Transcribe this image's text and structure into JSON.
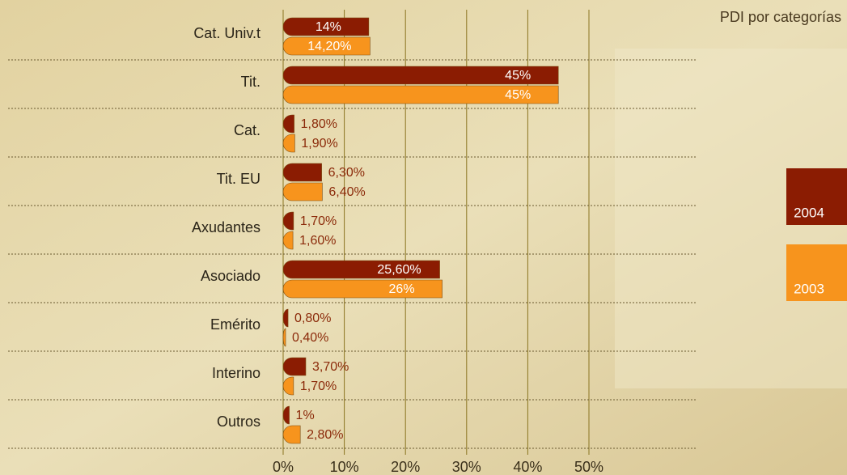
{
  "chart_data": {
    "type": "bar",
    "orientation": "horizontal",
    "title": "PDI por categorías",
    "categories": [
      "Cat. Univ.t",
      "Tit.",
      "Cat.",
      "Tit. EU",
      "Axudantes",
      "Asociado",
      "Emérito",
      "Interino",
      "Outros"
    ],
    "series": [
      {
        "name": "2004",
        "color": "#8b1c02",
        "values": [
          14,
          45,
          1.8,
          6.3,
          1.7,
          25.6,
          0.8,
          3.7,
          1
        ],
        "value_labels": [
          "14%",
          "45%",
          "1,80%",
          "6,30%",
          "1,70%",
          "25,60%",
          "0,80%",
          "3,70%",
          "1%"
        ]
      },
      {
        "name": "2003",
        "color": "#f7941d",
        "values": [
          14.2,
          45,
          1.9,
          6.4,
          1.6,
          26,
          0.4,
          1.7,
          2.8
        ],
        "value_labels": [
          "14,20%",
          "45%",
          "1,90%",
          "6,40%",
          "1,60%",
          "26%",
          "0,40%",
          "1,70%",
          "2,80%"
        ]
      }
    ],
    "xlim": [
      0,
      50
    ],
    "xticks": [
      {
        "value": 0,
        "label": "0%"
      },
      {
        "value": 10,
        "label": "10%"
      },
      {
        "value": 20,
        "label": "20%"
      },
      {
        "value": 30,
        "label": "30%"
      },
      {
        "value": 40,
        "label": "40%"
      },
      {
        "value": 50,
        "label": "50%"
      }
    ],
    "grid": true
  }
}
